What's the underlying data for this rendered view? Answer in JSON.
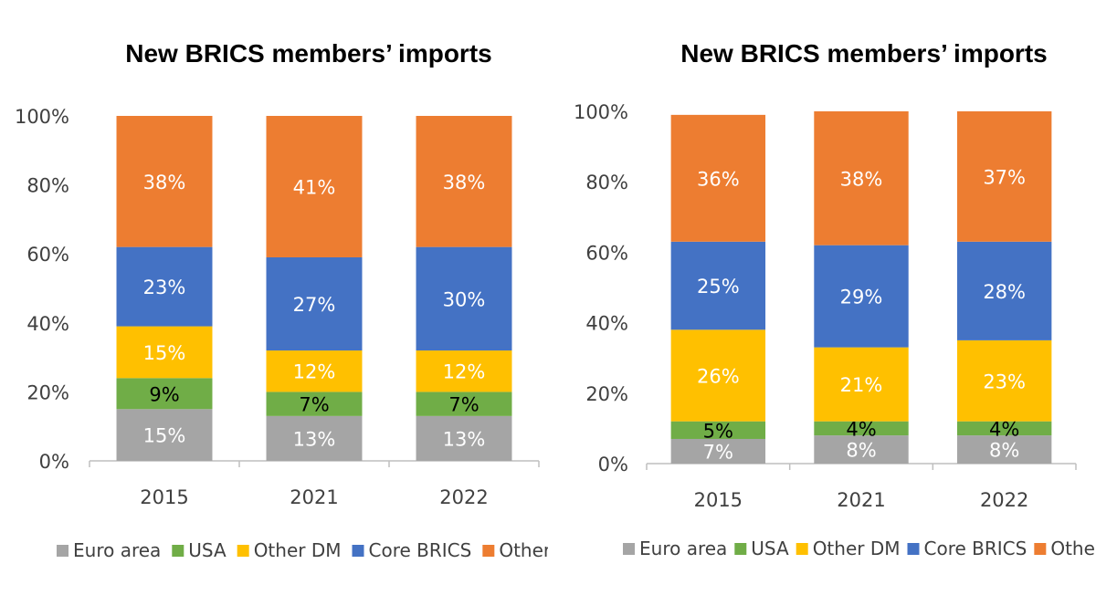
{
  "chart_data": [
    {
      "type": "bar",
      "stacked": true,
      "title": "New BRICS members’ imports",
      "categories": [
        "2015",
        "2021",
        "2022"
      ],
      "ylim": [
        0,
        100
      ],
      "yticks": [
        "0%",
        "20%",
        "40%",
        "60%",
        "80%",
        "100%"
      ],
      "legend_position": "bottom",
      "series": [
        {
          "name": "Euro area",
          "color": "#A5A5A5",
          "values": [
            15,
            13,
            13
          ],
          "labels": [
            "15%",
            "13%",
            "13%"
          ]
        },
        {
          "name": "USA",
          "color": "#70AD47",
          "values": [
            9,
            7,
            7
          ],
          "labels": [
            "9%",
            "7%",
            "7%"
          ]
        },
        {
          "name": "Other DM",
          "color": "#FFC000",
          "values": [
            15,
            12,
            12
          ],
          "labels": [
            "15%",
            "12%",
            "12%"
          ]
        },
        {
          "name": "Core BRICS",
          "color": "#4472C4",
          "values": [
            23,
            27,
            30
          ],
          "labels": [
            "23%",
            "27%",
            "30%"
          ]
        },
        {
          "name": "Other EM",
          "color": "#ED7D31",
          "values": [
            38,
            41,
            38
          ],
          "labels": [
            "38%",
            "41%",
            "38%"
          ]
        }
      ]
    },
    {
      "type": "bar",
      "stacked": true,
      "title": "New BRICS members’ imports",
      "categories": [
        "2015",
        "2021",
        "2022"
      ],
      "ylim": [
        0,
        100
      ],
      "yticks": [
        "0%",
        "20%",
        "40%",
        "60%",
        "80%",
        "100%"
      ],
      "legend_position": "bottom",
      "series": [
        {
          "name": "Euro area",
          "color": "#A5A5A5",
          "values": [
            7,
            8,
            8
          ],
          "labels": [
            "7%",
            "8%",
            "8%"
          ]
        },
        {
          "name": "USA",
          "color": "#70AD47",
          "values": [
            5,
            4,
            4
          ],
          "labels": [
            "5%",
            "4%",
            "4%"
          ]
        },
        {
          "name": "Other DM",
          "color": "#FFC000",
          "values": [
            26,
            21,
            23
          ],
          "labels": [
            "26%",
            "21%",
            "23%"
          ]
        },
        {
          "name": "Core BRICS",
          "color": "#4472C4",
          "values": [
            25,
            29,
            28
          ],
          "labels": [
            "25%",
            "29%",
            "28%"
          ]
        },
        {
          "name": "Other EM",
          "color": "#ED7D31",
          "values": [
            36,
            38,
            37
          ],
          "labels": [
            "36%",
            "38%",
            "37%"
          ]
        }
      ]
    }
  ]
}
